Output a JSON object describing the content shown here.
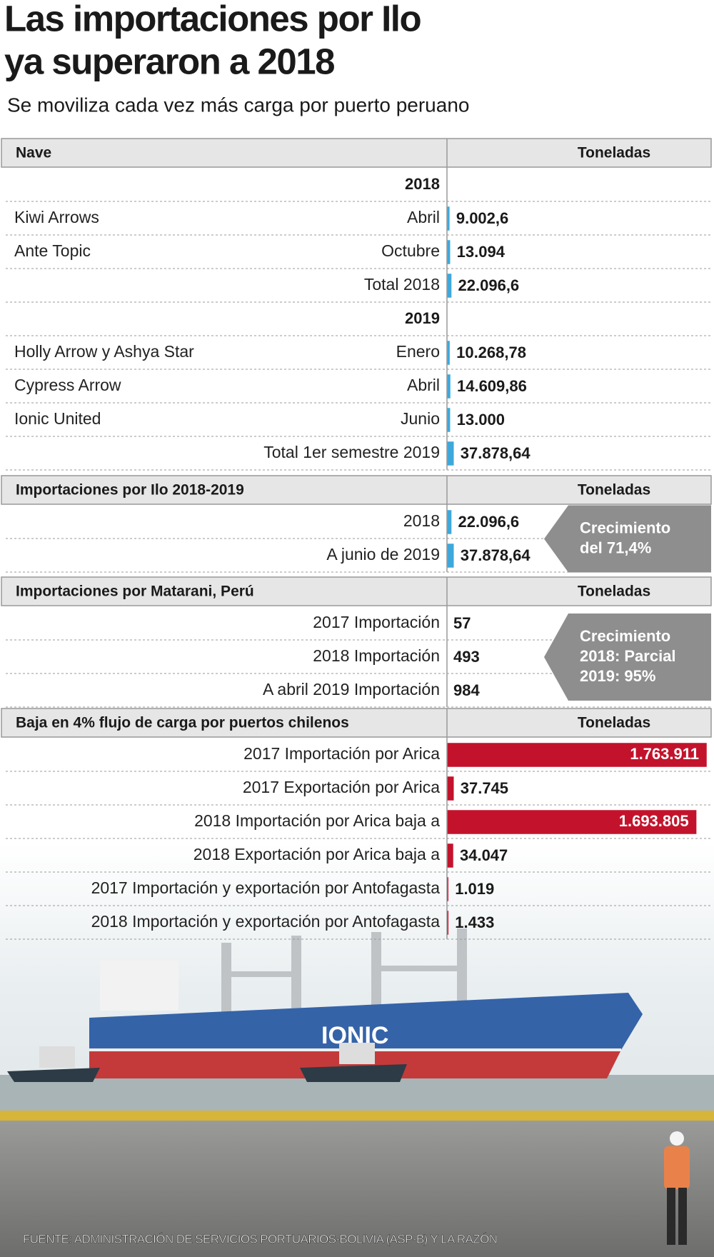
{
  "title": [
    "Las importaciones por Ilo",
    "ya superaron a 2018"
  ],
  "subtitle": "Se moviliza cada vez más carga por puerto peruano",
  "sections": [
    {
      "header": [
        "Nave",
        "Toneladas"
      ],
      "bar_color": "#3ea8dc",
      "groups": [
        {
          "year": "2018",
          "rows": [
            {
              "name": "Kiwi Arrows",
              "label": "Abril",
              "value": 9002.6,
              "value_label": "9.002,6"
            },
            {
              "name": "Ante Topic",
              "label": "Octubre",
              "value": 13094,
              "value_label": "13.094"
            },
            {
              "label": "Total 2018",
              "value": 22096.6,
              "value_label": "22.096,6"
            }
          ]
        },
        {
          "year": "2019",
          "rows": [
            {
              "name": "Holly Arrow y Ashya Star",
              "label": "Enero",
              "value": 10268.78,
              "value_label": "10.268,78"
            },
            {
              "name": "Cypress Arrow",
              "label": "Abril",
              "value": 14609.86,
              "value_label": "14.609,86"
            },
            {
              "name": "Ionic United",
              "label": "Junio",
              "value": 13000,
              "value_label": "13.000"
            },
            {
              "label": "Total 1er semestre 2019",
              "value": 37878.64,
              "value_label": "37.878,64"
            }
          ]
        }
      ]
    },
    {
      "header": [
        "Importaciones por Ilo 2018-2019",
        "Toneladas"
      ],
      "bar_color": "#3ea8dc",
      "callout": [
        "Crecimiento",
        "del 71,4%"
      ],
      "groups": [
        {
          "rows": [
            {
              "label": "2018",
              "value": 22096.6,
              "value_label": "22.096,6"
            },
            {
              "label": "A junio de 2019",
              "value": 37878.64,
              "value_label": "37.878,64"
            }
          ]
        }
      ]
    },
    {
      "header": [
        "Importaciones por Matarani, Perú",
        "Toneladas"
      ],
      "callout": [
        "Crecimiento",
        "2018: Parcial",
        "2019: 95%"
      ],
      "groups": [
        {
          "rows": [
            {
              "label": "2017 Importación",
              "value": 57
            },
            {
              "label": "2018 Importación",
              "value": 493
            },
            {
              "label": "A abril 2019 Importación",
              "value": 984
            }
          ]
        }
      ]
    },
    {
      "header": [
        "Baja en 4% flujo de carga por puertos chilenos",
        "Toneladas"
      ],
      "bar_color": "#c3132c",
      "groups": [
        {
          "rows": [
            {
              "label": "2017 Importación por Arica",
              "value": 1763911,
              "value_label": "1.763.911"
            },
            {
              "label": "2017 Exportación por Arica",
              "value": 37745,
              "value_label": "37.745"
            },
            {
              "label": "2018 Importación por Arica baja a",
              "value": 1693805,
              "value_label": "1.693.805"
            },
            {
              "label": "2018 Exportación por Arica baja a",
              "value": 34047,
              "value_label": "34.047"
            },
            {
              "label": "2017 Importación y exportación por Antofagasta",
              "value": 1019,
              "value_label": "1.019"
            },
            {
              "label": "2018 Importación y exportación por Antofagasta",
              "value": 1433,
              "value_label": "1.433"
            }
          ]
        }
      ]
    }
  ],
  "source": "FUENTE: ADMINISTRACIÓN DE SERVICIOS PORTUARIOS-BOLIVIA (ASP-B) Y LA RAZÓN"
}
